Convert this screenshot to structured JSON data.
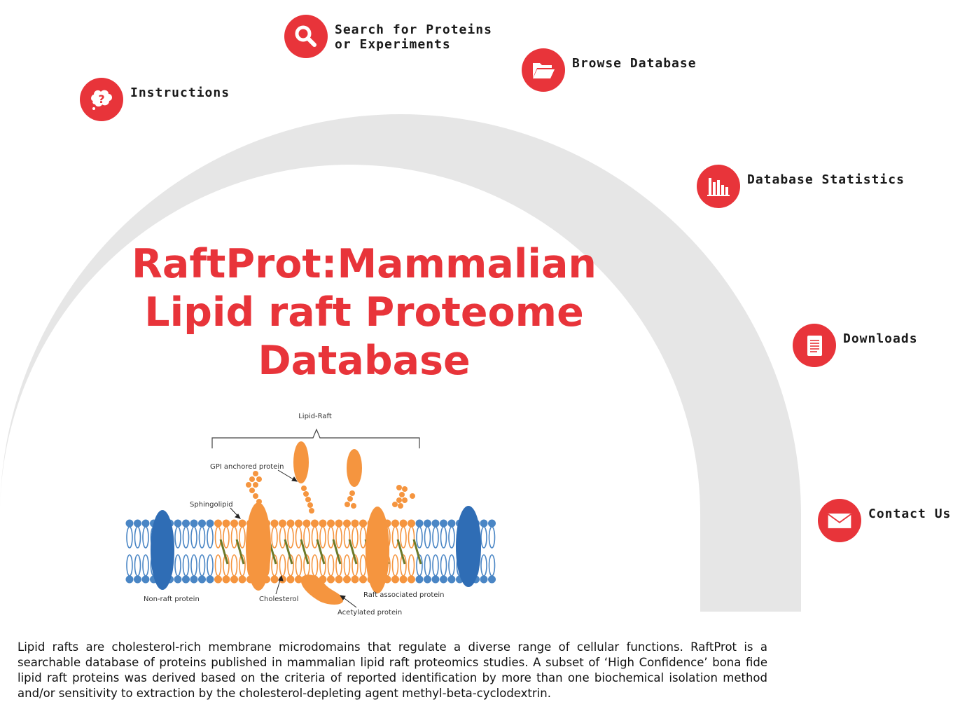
{
  "nav": {
    "instructions": "Instructions",
    "search": "Search for Proteins\nor Experiments",
    "browse": "Browse Database",
    "statistics": "Database Statistics",
    "downloads": "Downloads",
    "contact": "Contact Us"
  },
  "title": "RaftProt:Mammalian Lipid raft Proteome Database",
  "diagram": {
    "lipid_raft": "Lipid-Raft",
    "gpi": "GPI anchored protein",
    "sphingolipid": "Sphingolipid",
    "non_raft": "Non-raft protein",
    "cholesterol": "Cholesterol",
    "raft_associated": "Raft associated protein",
    "acetylated": "Acetylated protein"
  },
  "description": "Lipid rafts are cholesterol-rich membrane microdomains that regulate a diverse range of cellular functions. RaftProt is a searchable database of proteins published in mammalian lipid raft proteomics studies. A subset of ‘High Confidence’ bona fide lipid raft proteins was derived based on the criteria of reported identification by more than one biochemical isolation method and/or sensitivity to extraction by the cholesterol-depleting agent methyl-beta-cyclodextrin.",
  "colors": {
    "accent": "#e8343a",
    "arc": "#e6e6e6",
    "raft_lipid": "#f5953f",
    "non_raft_lipid": "#4a86c5",
    "non_raft_protein": "#2f6db5"
  }
}
